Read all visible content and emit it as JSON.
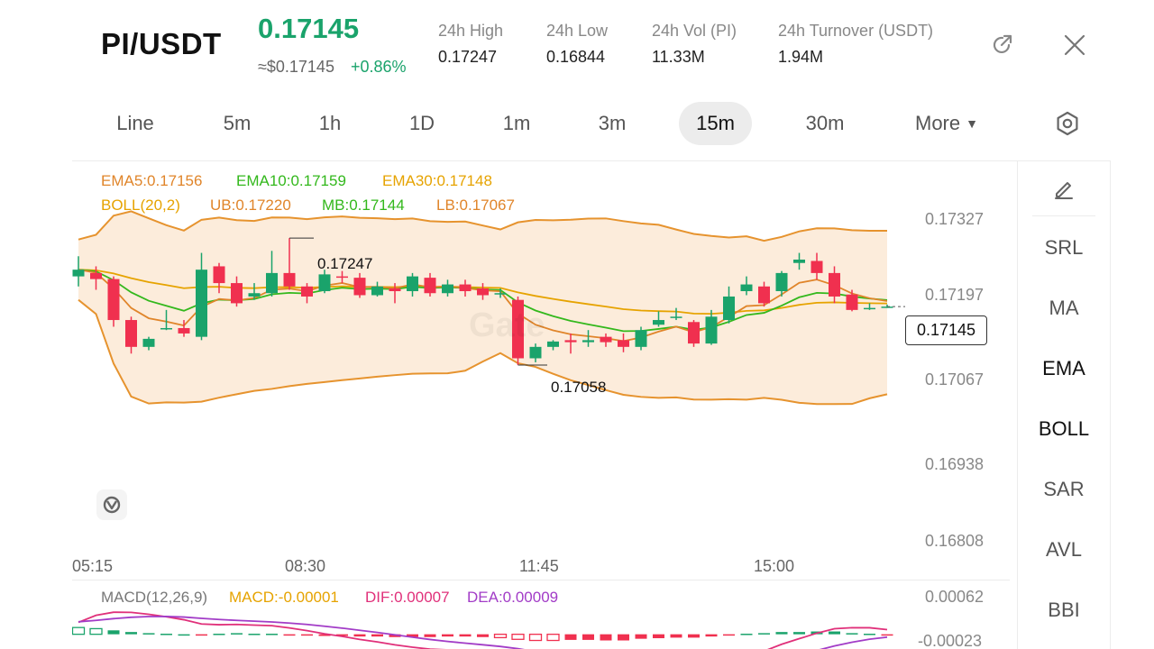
{
  "header": {
    "pair": "PI/USDT",
    "price": "0.17145",
    "usd_price": "≈$0.17145",
    "change": "+0.86%",
    "stats": [
      {
        "label": "24h   High",
        "value": "0.17247"
      },
      {
        "label": "24h   Low",
        "value": "0.16844"
      },
      {
        "label": "24h   Vol (PI)",
        "value": "11.33M"
      },
      {
        "label": "24h   Turnover (USDT)",
        "value": "1.94M"
      }
    ]
  },
  "timeframes": [
    "Line",
    "5m",
    "1h",
    "1D",
    "1m",
    "3m",
    "15m",
    "30m",
    "More"
  ],
  "active_timeframe": "15m",
  "indicators": {
    "ema5": "EMA5:0.17156",
    "ema10": "EMA10:0.17159",
    "ema30": "EMA30:0.17148",
    "boll": "BOLL(20,2)",
    "ub": "UB:0.17220",
    "mb": "MB:0.17144",
    "lb": "LB:0.17067",
    "macd_title": "MACD(12,26,9)",
    "macd": "MACD:-0.00001",
    "dif": "DIF:0.00007",
    "dea": "DEA:0.00009"
  },
  "y_axis": [
    "0.17327",
    "0.17197",
    "0.17067",
    "0.16938",
    "0.16808"
  ],
  "macd_axis": [
    "0.00062",
    "-0.00023"
  ],
  "x_axis": [
    "05:15",
    "08:30",
    "11:45",
    "15:00"
  ],
  "current_price_label": "0.17145",
  "annotations": {
    "high": "0.17247",
    "low": "0.17058"
  },
  "side_tools": [
    "SRL",
    "MA",
    "EMA",
    "BOLL",
    "SAR",
    "AVL",
    "BBI"
  ],
  "watermark": "Gate",
  "colors": {
    "up": "#1aa36b",
    "down": "#f0304f",
    "ema5": "#e0852a",
    "ema10": "#33b81c",
    "ema30": "#e6a300",
    "boll_band": "#e6932e",
    "macd_dif": "#e0307a",
    "macd_dea": "#a23cc7"
  },
  "chart_data": {
    "type": "candlestick",
    "unit": "USDT",
    "candles": [
      {
        "o": 0.1719,
        "c": 0.172,
        "h": 0.1722,
        "l": 0.17175
      },
      {
        "o": 0.17195,
        "c": 0.17186,
        "h": 0.17205,
        "l": 0.1717
      },
      {
        "o": 0.17186,
        "c": 0.17125,
        "h": 0.1719,
        "l": 0.17115
      },
      {
        "o": 0.17125,
        "c": 0.17085,
        "h": 0.1713,
        "l": 0.17075
      },
      {
        "o": 0.17085,
        "c": 0.17097,
        "h": 0.171,
        "l": 0.1708
      },
      {
        "o": 0.17113,
        "c": 0.17113,
        "h": 0.1714,
        "l": 0.1711
      },
      {
        "o": 0.17113,
        "c": 0.17105,
        "h": 0.17125,
        "l": 0.171
      },
      {
        "o": 0.171,
        "c": 0.172,
        "h": 0.17225,
        "l": 0.17095
      },
      {
        "o": 0.17205,
        "c": 0.1718,
        "h": 0.1721,
        "l": 0.17165
      },
      {
        "o": 0.1718,
        "c": 0.1715,
        "h": 0.1719,
        "l": 0.17145
      },
      {
        "o": 0.1716,
        "c": 0.17165,
        "h": 0.1718,
        "l": 0.17155
      },
      {
        "o": 0.17165,
        "c": 0.17195,
        "h": 0.17228,
        "l": 0.1716
      },
      {
        "o": 0.17195,
        "c": 0.17175,
        "h": 0.17247,
        "l": 0.1717
      },
      {
        "o": 0.17175,
        "c": 0.1716,
        "h": 0.1718,
        "l": 0.1715
      },
      {
        "o": 0.17168,
        "c": 0.17193,
        "h": 0.172,
        "l": 0.17165
      },
      {
        "o": 0.1719,
        "c": 0.17188,
        "h": 0.17198,
        "l": 0.1718
      },
      {
        "o": 0.17188,
        "c": 0.17162,
        "h": 0.17195,
        "l": 0.17158
      },
      {
        "o": 0.17162,
        "c": 0.17175,
        "h": 0.17182,
        "l": 0.1716
      },
      {
        "o": 0.17172,
        "c": 0.17168,
        "h": 0.1718,
        "l": 0.1715
      },
      {
        "o": 0.17168,
        "c": 0.1719,
        "h": 0.17195,
        "l": 0.1716
      },
      {
        "o": 0.17188,
        "c": 0.17165,
        "h": 0.17195,
        "l": 0.1716
      },
      {
        "o": 0.17165,
        "c": 0.17178,
        "h": 0.17185,
        "l": 0.1716
      },
      {
        "o": 0.17178,
        "c": 0.17168,
        "h": 0.17185,
        "l": 0.1716
      },
      {
        "o": 0.17172,
        "c": 0.17162,
        "h": 0.1718,
        "l": 0.17155
      },
      {
        "o": 0.17165,
        "c": 0.17165,
        "h": 0.17172,
        "l": 0.17158
      },
      {
        "o": 0.17155,
        "c": 0.17068,
        "h": 0.1716,
        "l": 0.17058
      },
      {
        "o": 0.17068,
        "c": 0.17085,
        "h": 0.1709,
        "l": 0.17062
      },
      {
        "o": 0.17085,
        "c": 0.17093,
        "h": 0.17095,
        "l": 0.1708
      },
      {
        "o": 0.17095,
        "c": 0.17092,
        "h": 0.17105,
        "l": 0.17075
      },
      {
        "o": 0.17092,
        "c": 0.17095,
        "h": 0.1711,
        "l": 0.17085
      },
      {
        "o": 0.171,
        "c": 0.17092,
        "h": 0.17105,
        "l": 0.17085
      },
      {
        "o": 0.17095,
        "c": 0.17085,
        "h": 0.17105,
        "l": 0.17077
      },
      {
        "o": 0.17085,
        "c": 0.1711,
        "h": 0.17115,
        "l": 0.1708
      },
      {
        "o": 0.17118,
        "c": 0.17125,
        "h": 0.17138,
        "l": 0.17115
      },
      {
        "o": 0.1713,
        "c": 0.1713,
        "h": 0.17143,
        "l": 0.17125
      },
      {
        "o": 0.17122,
        "c": 0.1709,
        "h": 0.17125,
        "l": 0.17085
      },
      {
        "o": 0.1709,
        "c": 0.1713,
        "h": 0.1714,
        "l": 0.17088
      },
      {
        "o": 0.17125,
        "c": 0.1716,
        "h": 0.17175,
        "l": 0.1712
      },
      {
        "o": 0.17168,
        "c": 0.17178,
        "h": 0.1719,
        "l": 0.17162
      },
      {
        "o": 0.17175,
        "c": 0.1715,
        "h": 0.17182,
        "l": 0.17145
      },
      {
        "o": 0.17168,
        "c": 0.17195,
        "h": 0.17198,
        "l": 0.1716
      },
      {
        "o": 0.1721,
        "c": 0.17215,
        "h": 0.17225,
        "l": 0.172
      },
      {
        "o": 0.17213,
        "c": 0.17195,
        "h": 0.17225,
        "l": 0.17185
      },
      {
        "o": 0.17195,
        "c": 0.1716,
        "h": 0.17205,
        "l": 0.1715
      },
      {
        "o": 0.17163,
        "c": 0.1714,
        "h": 0.1717,
        "l": 0.17138
      },
      {
        "o": 0.17143,
        "c": 0.17143,
        "h": 0.1715,
        "l": 0.1714
      },
      {
        "o": 0.17145,
        "c": 0.17145,
        "h": 0.17148,
        "l": 0.17143
      }
    ],
    "ylim": [
      0.1678,
      0.1736
    ],
    "y_ticks": [
      0.17327,
      0.17197,
      0.17067,
      0.16938,
      0.16808
    ],
    "x_tick_labels": [
      "05:15",
      "08:30",
      "11:45",
      "15:00"
    ],
    "grid": false,
    "macd_histogram": [
      0.00012,
      0.0001,
      7e-05,
      4e-05,
      2e-05,
      1e-05,
      0.0,
      -2e-05,
      1e-05,
      2e-05,
      1e-05,
      1e-05,
      -1e-05,
      -2e-05,
      -3e-05,
      -3e-05,
      -4e-05,
      -4e-05,
      -5e-05,
      -5e-05,
      -5e-05,
      -4e-05,
      -4e-05,
      -5e-05,
      -6e-05,
      -9e-05,
      -0.00011,
      -0.00011,
      -0.0001,
      -0.0001,
      -0.00011,
      -0.00011,
      -8e-05,
      -7e-05,
      -6e-05,
      -6e-05,
      -4e-05,
      -2e-05,
      1e-05,
      2e-05,
      4e-05,
      4e-05,
      5e-05,
      5e-05,
      2e-05,
      1e-05,
      -1e-05
    ],
    "macd_ylim": [
      -0.00023,
      0.00062
    ]
  }
}
